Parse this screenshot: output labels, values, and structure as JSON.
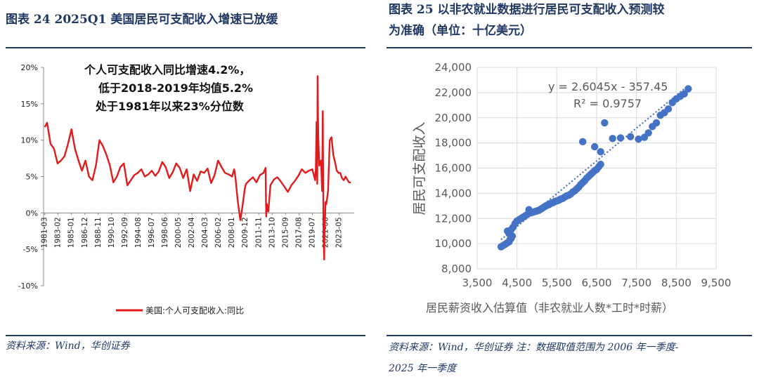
{
  "left": {
    "figure_title": "图表 24   2025Q1 美国居民可支配收入增速已放缓",
    "source": "资料来源：Wind，华创证券"
  },
  "right": {
    "figure_title_line1": "图表 25   以非农就业数据进行居民可支配收入预测较",
    "figure_title_line2": "为准确（单位：十亿美元）",
    "source_line1": "资料来源：Wind，华创证券  注：数据取值范围为 2006 年一季度-",
    "source_line2": "2025 年一季度"
  },
  "colors": {
    "accent": "#1f3864",
    "line": "#e31a1c",
    "scatter": "#4472c4"
  },
  "chart_data": [
    {
      "type": "line",
      "title": "",
      "xlabel": "",
      "ylabel": "",
      "ylim": [
        -0.1,
        0.2
      ],
      "yticks": [
        "20%",
        "15%",
        "10%",
        "5%",
        "0%",
        "-5%",
        "-10%"
      ],
      "x_tick_labels": [
        "1981-03",
        "1983-02",
        "1985-01",
        "1986-12",
        "1988-11",
        "1990-10",
        "1992-09",
        "1994-08",
        "1996-07",
        "1998-06",
        "2000-05",
        "2002-04",
        "2004-03",
        "2006-02",
        "2008-01",
        "2009-12",
        "2011-11",
        "2013-10",
        "2015-09",
        "2017-08",
        "2019-07",
        "2021-06",
        "2023-05"
      ],
      "annotation_lines": [
        "个人可支配收入同比增速4.2%，",
        "低于2018-2019年均值5.2%",
        "处于1981年以来23%分位数"
      ],
      "series": [
        {
          "name": "美国:个人可支配收入:同比",
          "x": [
            1981.17,
            1981.5,
            1982.0,
            1982.5,
            1983.0,
            1983.5,
            1984.0,
            1984.5,
            1985.0,
            1985.5,
            1986.0,
            1986.5,
            1987.0,
            1987.5,
            1988.0,
            1988.5,
            1989.0,
            1989.5,
            1990.0,
            1990.5,
            1991.0,
            1991.5,
            1992.0,
            1992.5,
            1993.0,
            1993.5,
            1994.0,
            1994.5,
            1995.0,
            1995.5,
            1996.0,
            1996.5,
            1997.0,
            1997.5,
            1998.0,
            1998.5,
            1999.0,
            1999.5,
            2000.0,
            2000.5,
            2001.0,
            2001.5,
            2002.0,
            2002.5,
            2003.0,
            2003.5,
            2004.0,
            2004.5,
            2005.0,
            2005.5,
            2006.0,
            2006.5,
            2007.0,
            2007.5,
            2008.0,
            2008.3,
            2008.5,
            2008.8,
            2009.0,
            2009.2,
            2009.5,
            2009.8,
            2010.0,
            2010.5,
            2011.0,
            2011.5,
            2012.0,
            2012.5,
            2012.8,
            2012.9,
            2013.0,
            2013.2,
            2013.5,
            2014.0,
            2014.5,
            2015.0,
            2015.5,
            2016.0,
            2016.5,
            2017.0,
            2017.5,
            2018.0,
            2018.5,
            2019.0,
            2019.5,
            2019.9,
            2020.0,
            2020.1,
            2020.2,
            2020.25,
            2020.35,
            2020.5,
            2020.75,
            2020.9,
            2021.0,
            2021.1,
            2021.2,
            2021.25,
            2021.4,
            2021.5,
            2021.75,
            2022.0,
            2022.25,
            2022.5,
            2022.75,
            2023.0,
            2023.25,
            2023.5,
            2023.75,
            2024.0,
            2024.25,
            2024.5,
            2024.75,
            2025.0
          ],
          "y": [
            0.118,
            0.124,
            0.095,
            0.088,
            0.068,
            0.072,
            0.078,
            0.095,
            0.115,
            0.088,
            0.072,
            0.058,
            0.072,
            0.05,
            0.045,
            0.065,
            0.1,
            0.092,
            0.08,
            0.065,
            0.042,
            0.05,
            0.063,
            0.068,
            0.038,
            0.045,
            0.052,
            0.055,
            0.06,
            0.05,
            0.053,
            0.058,
            0.051,
            0.057,
            0.07,
            0.063,
            0.048,
            0.056,
            0.068,
            0.062,
            0.048,
            0.06,
            0.03,
            0.053,
            0.044,
            0.057,
            0.055,
            0.061,
            0.041,
            0.052,
            0.072,
            0.063,
            0.055,
            0.053,
            0.05,
            0.06,
            0.048,
            0.018,
            0.003,
            -0.01,
            0.01,
            0.032,
            0.04,
            0.045,
            0.049,
            0.042,
            0.052,
            0.055,
            0.062,
            -0.005,
            0.012,
            0.002,
            0.038,
            0.046,
            0.049,
            0.043,
            0.036,
            0.029,
            0.038,
            0.044,
            0.051,
            0.06,
            0.055,
            0.058,
            0.06,
            0.045,
            0.06,
            0.125,
            0.04,
            0.188,
            0.108,
            0.065,
            0.072,
            0.03,
            0.14,
            -0.03,
            -0.064,
            -0.025,
            0.015,
            0.012,
            0.03,
            0.1,
            0.104,
            0.08,
            0.07,
            0.058,
            0.055,
            0.055,
            0.048,
            0.045,
            0.05,
            0.046,
            0.042,
            0.042
          ]
        }
      ]
    },
    {
      "type": "scatter",
      "title": "",
      "xlabel": "居民薪资收入估算值（非农就业人数*工时*时薪）",
      "ylabel": "居民可支配收入",
      "xlim": [
        3500,
        9500
      ],
      "ylim": [
        8000,
        24000
      ],
      "xticks": [
        "3,500",
        "4,500",
        "5,500",
        "6,500",
        "7,500",
        "8,500",
        "9,500"
      ],
      "yticks": [
        "24,000",
        "22,000",
        "20,000",
        "18,000",
        "16,000",
        "14,000",
        "12,000",
        "10,000",
        "8,000"
      ],
      "trendline": {
        "slope": 2.6045,
        "intercept": -357.45,
        "equation": "y = 2.6045x - 357.45",
        "r2": "R² = 0.9757"
      },
      "series": [
        {
          "name": "",
          "points": [
            [
              4100,
              9750
            ],
            [
              4150,
              9850
            ],
            [
              4200,
              9950
            ],
            [
              4250,
              10050
            ],
            [
              4300,
              10150
            ],
            [
              4320,
              10300
            ],
            [
              4350,
              10400
            ],
            [
              4380,
              10600
            ],
            [
              4300,
              10800
            ],
            [
              4260,
              11000
            ],
            [
              4350,
              11100
            ],
            [
              4400,
              11300
            ],
            [
              4450,
              11600
            ],
            [
              4500,
              11800
            ],
            [
              4550,
              11900
            ],
            [
              4600,
              12000
            ],
            [
              4650,
              12100
            ],
            [
              4700,
              12200
            ],
            [
              4750,
              12300
            ],
            [
              4800,
              12700
            ],
            [
              4850,
              12450
            ],
            [
              4900,
              12500
            ],
            [
              4950,
              12550
            ],
            [
              5000,
              12600
            ],
            [
              5050,
              12650
            ],
            [
              5100,
              12750
            ],
            [
              5150,
              12850
            ],
            [
              5200,
              12950
            ],
            [
              5250,
              13050
            ],
            [
              5300,
              13100
            ],
            [
              5350,
              13200
            ],
            [
              5400,
              13250
            ],
            [
              5450,
              13350
            ],
            [
              5500,
              13400
            ],
            [
              5550,
              13450
            ],
            [
              5600,
              13550
            ],
            [
              5650,
              13600
            ],
            [
              5700,
              13700
            ],
            [
              5750,
              13800
            ],
            [
              5800,
              13850
            ],
            [
              5850,
              13950
            ],
            [
              5900,
              14100
            ],
            [
              5950,
              14200
            ],
            [
              6000,
              14350
            ],
            [
              6050,
              14500
            ],
            [
              6100,
              14700
            ],
            [
              6150,
              14850
            ],
            [
              6200,
              15000
            ],
            [
              6250,
              15200
            ],
            [
              6300,
              15350
            ],
            [
              6350,
              15500
            ],
            [
              6400,
              15650
            ],
            [
              6450,
              15800
            ],
            [
              6500,
              15900
            ],
            [
              6550,
              16100
            ],
            [
              6600,
              16300
            ],
            [
              6150,
              18100
            ],
            [
              6450,
              17700
            ],
            [
              6600,
              17300
            ],
            [
              6700,
              19600
            ],
            [
              6900,
              18350
            ],
            [
              7100,
              18400
            ],
            [
              7350,
              18500
            ],
            [
              7550,
              18300
            ],
            [
              7700,
              18450
            ],
            [
              7800,
              18800
            ],
            [
              7900,
              19300
            ],
            [
              8000,
              19600
            ],
            [
              8100,
              20200
            ],
            [
              8200,
              20400
            ],
            [
              8300,
              20700
            ],
            [
              8400,
              21200
            ],
            [
              8500,
              21500
            ],
            [
              8600,
              21700
            ],
            [
              8700,
              21900
            ],
            [
              8800,
              22300
            ]
          ]
        }
      ]
    }
  ]
}
